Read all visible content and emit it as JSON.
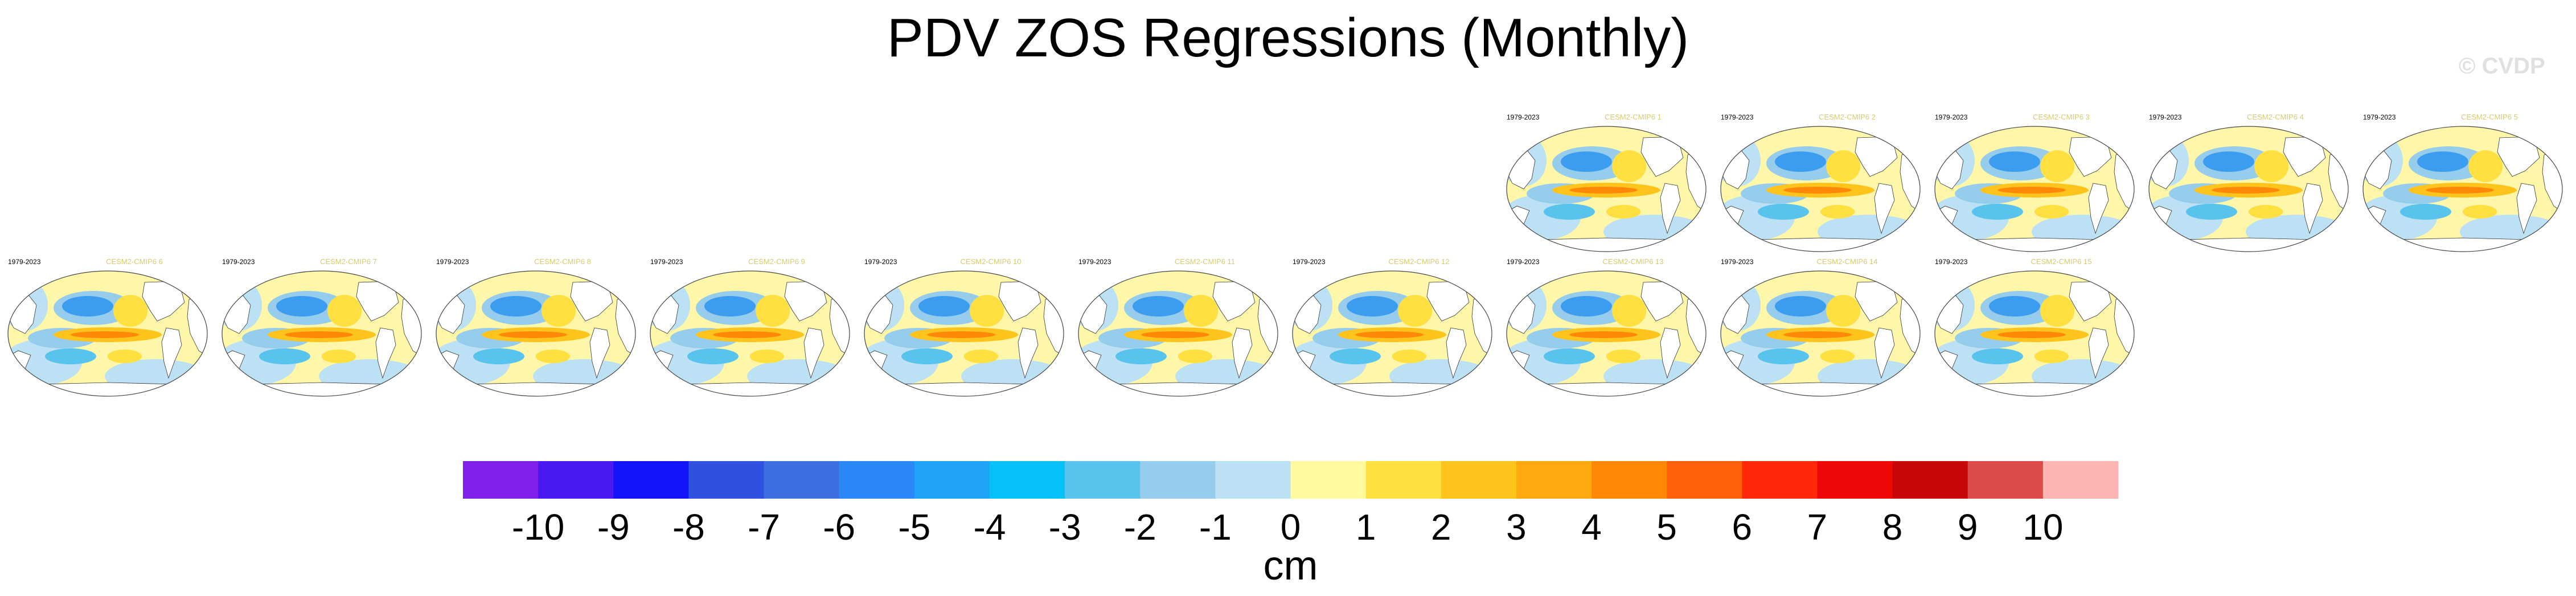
{
  "title": "PDV ZOS Regressions (Monthly)",
  "watermark": "© CVDP",
  "chart_data": {
    "type": "heatmap",
    "title": "PDV ZOS Regressions (Monthly)",
    "panels": [
      {
        "period": "1979-2023",
        "model": "CESM2-CMIP6 1",
        "row": 0,
        "col": 7
      },
      {
        "period": "1979-2023",
        "model": "CESM2-CMIP6 2",
        "row": 0,
        "col": 8
      },
      {
        "period": "1979-2023",
        "model": "CESM2-CMIP6 3",
        "row": 0,
        "col": 9
      },
      {
        "period": "1979-2023",
        "model": "CESM2-CMIP6 4",
        "row": 0,
        "col": 10
      },
      {
        "period": "1979-2023",
        "model": "CESM2-CMIP6 5",
        "row": 0,
        "col": 11
      },
      {
        "period": "1979-2023",
        "model": "CESM2-CMIP6 6",
        "row": 1,
        "col": 0
      },
      {
        "period": "1979-2023",
        "model": "CESM2-CMIP6 7",
        "row": 1,
        "col": 1
      },
      {
        "period": "1979-2023",
        "model": "CESM2-CMIP6 8",
        "row": 1,
        "col": 2
      },
      {
        "period": "1979-2023",
        "model": "CESM2-CMIP6 9",
        "row": 1,
        "col": 3
      },
      {
        "period": "1979-2023",
        "model": "CESM2-CMIP6 10",
        "row": 1,
        "col": 4
      },
      {
        "period": "1979-2023",
        "model": "CESM2-CMIP6 11",
        "row": 1,
        "col": 5
      },
      {
        "period": "1979-2023",
        "model": "CESM2-CMIP6 12",
        "row": 1,
        "col": 6
      },
      {
        "period": "1979-2023",
        "model": "CESM2-CMIP6 13",
        "row": 1,
        "col": 7
      },
      {
        "period": "1979-2023",
        "model": "CESM2-CMIP6 14",
        "row": 1,
        "col": 8
      },
      {
        "period": "1979-2023",
        "model": "CESM2-CMIP6 15",
        "row": 1,
        "col": 9
      }
    ],
    "colorbar": {
      "unit": "cm",
      "tick_labels": [
        "-10",
        "-9",
        "-8",
        "-7",
        "-6",
        "-5",
        "-4",
        "-3",
        "-2",
        "-1",
        "0",
        "1",
        "2",
        "3",
        "4",
        "5",
        "6",
        "7",
        "8",
        "9",
        "10"
      ],
      "colors": [
        "#8020e8",
        "#4a18f0",
        "#1414f8",
        "#3050e0",
        "#3c70e0",
        "#2a88f8",
        "#20a4f8",
        "#08c0f8",
        "#58c4ee",
        "#96ccec",
        "#bce0f4",
        "#fffaa0",
        "#ffe040",
        "#ffc41c",
        "#ffa810",
        "#ff8808",
        "#ff6008",
        "#ff2808",
        "#ee0808",
        "#c80808",
        "#dc4a4a",
        "#ffb4b4"
      ]
    }
  }
}
